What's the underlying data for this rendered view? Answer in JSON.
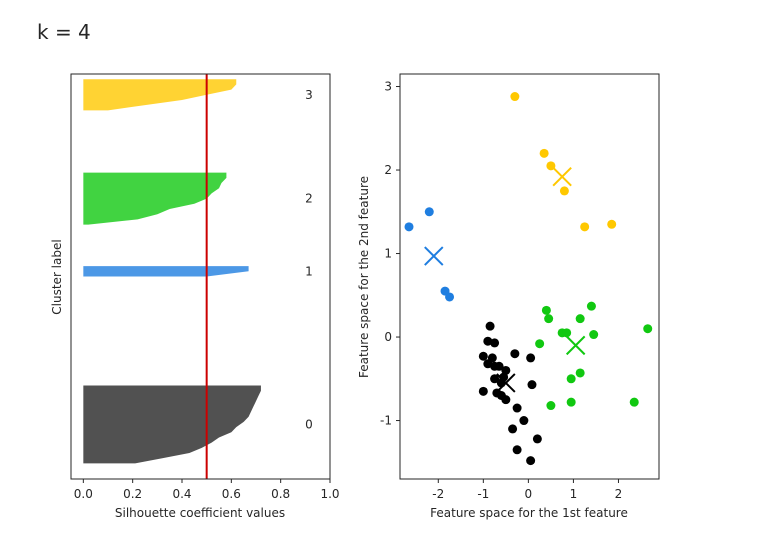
{
  "figure": {
    "title": "k = 4"
  },
  "chart_data": [
    {
      "type": "area",
      "name": "silhouette-plot",
      "xlabel": "Silhouette coefficient values",
      "ylabel": "Cluster label",
      "xlim": [
        -0.05,
        1.0
      ],
      "ylim": [
        0,
        78
      ],
      "xticks": [
        0.0,
        0.2,
        0.4,
        0.6,
        0.8,
        1.0
      ],
      "xtick_labels": [
        "0.0",
        "0.2",
        "0.4",
        "0.6",
        "0.8",
        "1.0"
      ],
      "average_silhouette": 0.5,
      "average_line_color": "#cc0000",
      "clusters": [
        {
          "label": "0",
          "color": "#262626",
          "y_lower": 3,
          "values": [
            0.21,
            0.32,
            0.43,
            0.48,
            0.52,
            0.55,
            0.6,
            0.62,
            0.65,
            0.67,
            0.68,
            0.69,
            0.7,
            0.71,
            0.72
          ]
        },
        {
          "label": "1",
          "color": "#1f7ee0",
          "y_lower": 39,
          "values": [
            0.5,
            0.67
          ]
        },
        {
          "label": "2",
          "color": "#11c811",
          "y_lower": 49,
          "values": [
            0.02,
            0.22,
            0.3,
            0.35,
            0.45,
            0.5,
            0.52,
            0.55,
            0.56,
            0.58
          ]
        },
        {
          "label": "3",
          "color": "#ffc800",
          "y_lower": 71,
          "values": [
            0.1,
            0.25,
            0.4,
            0.5,
            0.6,
            0.62
          ]
        }
      ]
    },
    {
      "type": "scatter",
      "name": "feature-space-plot",
      "xlabel": "Feature space for the 1st feature",
      "ylabel": "Feature space for the 2nd feature",
      "xlim": [
        -2.85,
        2.9
      ],
      "ylim": [
        -1.7,
        3.15
      ],
      "xticks": [
        -2,
        -1,
        0,
        1,
        2
      ],
      "xtick_labels": [
        "-2",
        "-1",
        "0",
        "1",
        "2"
      ],
      "yticks": [
        -1,
        0,
        1,
        2,
        3
      ],
      "ytick_labels": [
        "-1",
        "0",
        "1",
        "2",
        "3"
      ],
      "series": [
        {
          "name": "0",
          "color": "#000000",
          "points": [
            [
              -0.85,
              0.13
            ],
            [
              -0.9,
              -0.05
            ],
            [
              -0.75,
              -0.07
            ],
            [
              -1.0,
              -0.23
            ],
            [
              -0.8,
              -0.25
            ],
            [
              -0.9,
              -0.32
            ],
            [
              -0.75,
              -0.35
            ],
            [
              -0.65,
              -0.35
            ],
            [
              -0.5,
              -0.4
            ],
            [
              -0.55,
              -0.48
            ],
            [
              -0.75,
              -0.5
            ],
            [
              -0.6,
              -0.55
            ],
            [
              -1.0,
              -0.65
            ],
            [
              -0.7,
              -0.67
            ],
            [
              -0.6,
              -0.7
            ],
            [
              -0.5,
              -0.75
            ],
            [
              -0.3,
              -0.2
            ],
            [
              0.05,
              -0.25
            ],
            [
              0.08,
              -0.57
            ],
            [
              -0.25,
              -0.85
            ],
            [
              -0.1,
              -1.0
            ],
            [
              -0.35,
              -1.1
            ],
            [
              0.2,
              -1.22
            ],
            [
              -0.25,
              -1.35
            ],
            [
              0.05,
              -1.48
            ]
          ],
          "center": [
            -0.5,
            -0.55
          ]
        },
        {
          "name": "1",
          "color": "#1f7ee0",
          "points": [
            [
              -2.65,
              1.32
            ],
            [
              -2.2,
              1.5
            ],
            [
              -1.85,
              0.55
            ],
            [
              -1.75,
              0.48
            ]
          ],
          "center": [
            -2.1,
            0.97
          ]
        },
        {
          "name": "2",
          "color": "#11c811",
          "points": [
            [
              0.4,
              0.32
            ],
            [
              0.45,
              0.22
            ],
            [
              0.25,
              -0.08
            ],
            [
              0.75,
              0.05
            ],
            [
              0.85,
              0.05
            ],
            [
              1.15,
              0.22
            ],
            [
              1.4,
              0.37
            ],
            [
              1.45,
              0.03
            ],
            [
              2.65,
              0.1
            ],
            [
              0.95,
              -0.5
            ],
            [
              1.15,
              -0.43
            ],
            [
              0.5,
              -0.82
            ],
            [
              0.95,
              -0.78
            ],
            [
              2.35,
              -0.78
            ]
          ],
          "center": [
            1.05,
            -0.1
          ]
        },
        {
          "name": "3",
          "color": "#ffc800",
          "points": [
            [
              -0.3,
              2.88
            ],
            [
              0.35,
              2.2
            ],
            [
              0.5,
              2.05
            ],
            [
              0.8,
              1.75
            ],
            [
              1.25,
              1.32
            ],
            [
              1.85,
              1.35
            ]
          ],
          "center": [
            0.75,
            1.92
          ]
        }
      ]
    }
  ]
}
